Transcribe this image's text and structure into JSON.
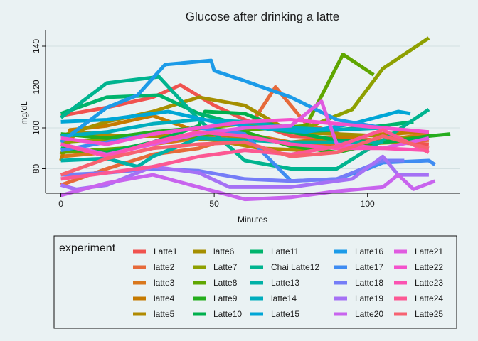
{
  "chart_data": {
    "type": "line",
    "title": "Glucose after drinking a latte",
    "xlabel": "Minutes",
    "ylabel": "mg/dL",
    "xlim": [
      -5,
      130
    ],
    "ylim": [
      68,
      148
    ],
    "xticks": [
      0,
      50,
      100
    ],
    "yticks": [
      80,
      100,
      120,
      140
    ],
    "grid": "horizontal",
    "legend_title": "experiment",
    "legend_position": "bottom",
    "series": [
      {
        "name": "Latte1",
        "color": "#f0534f",
        "points": [
          [
            0,
            106
          ],
          [
            15,
            110
          ],
          [
            30,
            115
          ],
          [
            39,
            121
          ],
          [
            50,
            111
          ],
          [
            60,
            104
          ],
          [
            75,
            96
          ],
          [
            90,
            95
          ],
          [
            105,
            93
          ],
          [
            120,
            92
          ]
        ]
      },
      {
        "name": "latte2",
        "color": "#e66a3a",
        "points": [
          [
            0,
            72
          ],
          [
            15,
            80
          ],
          [
            30,
            87
          ],
          [
            45,
            90
          ],
          [
            60,
            97
          ],
          [
            70,
            120
          ],
          [
            80,
            102
          ],
          [
            95,
            95
          ],
          [
            110,
            93
          ],
          [
            120,
            94
          ]
        ]
      },
      {
        "name": "latte3",
        "color": "#d9771c",
        "points": [
          [
            0,
            86
          ],
          [
            15,
            88
          ],
          [
            30,
            92
          ],
          [
            45,
            95
          ],
          [
            60,
            97
          ],
          [
            75,
            93
          ],
          [
            90,
            91
          ],
          [
            105,
            94
          ],
          [
            120,
            97
          ]
        ]
      },
      {
        "name": "latte4",
        "color": "#c57a00",
        "points": [
          [
            0,
            84
          ],
          [
            3,
            99
          ],
          [
            15,
            101
          ],
          [
            30,
            106
          ],
          [
            45,
            98
          ],
          [
            60,
            95
          ],
          [
            75,
            93
          ],
          [
            90,
            95
          ],
          [
            105,
            97
          ],
          [
            120,
            98
          ]
        ]
      },
      {
        "name": "latte5",
        "color": "#b08a00",
        "points": [
          [
            0,
            87
          ],
          [
            5,
            98
          ],
          [
            20,
            96
          ],
          [
            35,
            96
          ],
          [
            50,
            94
          ],
          [
            65,
            90
          ],
          [
            80,
            89
          ],
          [
            95,
            92
          ],
          [
            110,
            93
          ],
          [
            120,
            95
          ]
        ]
      },
      {
        "name": "latte6",
        "color": "#a58f00",
        "points": [
          [
            0,
            96
          ],
          [
            15,
            103
          ],
          [
            30,
            108
          ],
          [
            45,
            115
          ],
          [
            60,
            111
          ],
          [
            75,
            98
          ],
          [
            90,
            97
          ],
          [
            105,
            96
          ],
          [
            115,
            95
          ]
        ]
      },
      {
        "name": "Latte7",
        "color": "#8ea000",
        "points": [
          [
            0,
            93
          ],
          [
            20,
            95
          ],
          [
            40,
            99
          ],
          [
            60,
            102
          ],
          [
            80,
            100
          ],
          [
            95,
            109
          ],
          [
            105,
            129
          ],
          [
            120,
            144
          ]
        ]
      },
      {
        "name": "Latte8",
        "color": "#5fa600",
        "points": [
          [
            0,
            88
          ],
          [
            20,
            90
          ],
          [
            40,
            95
          ],
          [
            60,
            99
          ],
          [
            80,
            101
          ],
          [
            92,
            136
          ],
          [
            102,
            126
          ]
        ]
      },
      {
        "name": "Latte9",
        "color": "#24ad1d",
        "points": [
          [
            0,
            97
          ],
          [
            15,
            95
          ],
          [
            30,
            98
          ],
          [
            45,
            100
          ],
          [
            60,
            98
          ],
          [
            75,
            91
          ],
          [
            90,
            88
          ],
          [
            105,
            93
          ],
          [
            120,
            96
          ],
          [
            127,
            97
          ]
        ]
      },
      {
        "name": "Latte10",
        "color": "#00b04c",
        "points": [
          [
            0,
            90
          ],
          [
            15,
            88
          ],
          [
            30,
            93
          ],
          [
            45,
            101
          ],
          [
            47,
            108
          ],
          [
            60,
            107
          ],
          [
            75,
            98
          ],
          [
            90,
            94
          ],
          [
            105,
            93
          ],
          [
            120,
            95
          ]
        ]
      },
      {
        "name": "Latte11",
        "color": "#00b46c",
        "points": [
          [
            0,
            107
          ],
          [
            15,
            115
          ],
          [
            32,
            116
          ],
          [
            45,
            107
          ],
          [
            60,
            101
          ],
          [
            75,
            98
          ],
          [
            90,
            99
          ],
          [
            105,
            101
          ],
          [
            115,
            103
          ]
        ]
      },
      {
        "name": "Chai Latte12",
        "color": "#00b48f",
        "points": [
          [
            0,
            105
          ],
          [
            15,
            122
          ],
          [
            32,
            125
          ],
          [
            45,
            104
          ],
          [
            60,
            84
          ],
          [
            75,
            80
          ],
          [
            90,
            80
          ],
          [
            105,
            94
          ],
          [
            120,
            109
          ]
        ]
      },
      {
        "name": "Latte13",
        "color": "#00b1a6",
        "points": [
          [
            0,
            84
          ],
          [
            15,
            85
          ],
          [
            25,
            81
          ],
          [
            30,
            86
          ],
          [
            45,
            95
          ],
          [
            60,
            94
          ],
          [
            75,
            93
          ],
          [
            90,
            93
          ],
          [
            105,
            93
          ]
        ]
      },
      {
        "name": "latte14",
        "color": "#00adbd",
        "points": [
          [
            0,
            96
          ],
          [
            15,
            98
          ],
          [
            30,
            102
          ],
          [
            45,
            104
          ],
          [
            60,
            103
          ],
          [
            75,
            100
          ],
          [
            90,
            99
          ],
          [
            105,
            100
          ]
        ]
      },
      {
        "name": "Latte15",
        "color": "#00a6d6",
        "points": [
          [
            0,
            103
          ],
          [
            15,
            104
          ],
          [
            35,
            108
          ],
          [
            50,
            103
          ],
          [
            65,
            100
          ],
          [
            80,
            98
          ],
          [
            95,
            102
          ],
          [
            110,
            108
          ],
          [
            114,
            107
          ]
        ]
      },
      {
        "name": "Latte16",
        "color": "#1c9be8",
        "points": [
          [
            0,
            93
          ],
          [
            15,
            110
          ],
          [
            25,
            116
          ],
          [
            34,
            131
          ],
          [
            49,
            133
          ],
          [
            50,
            128
          ],
          [
            60,
            123
          ],
          [
            75,
            115
          ],
          [
            90,
            104
          ],
          [
            105,
            100
          ]
        ]
      },
      {
        "name": "Latte17",
        "color": "#3f8cf2",
        "points": [
          [
            0,
            89
          ],
          [
            15,
            93
          ],
          [
            30,
            97
          ],
          [
            45,
            100
          ],
          [
            60,
            97
          ],
          [
            75,
            74
          ],
          [
            90,
            75
          ],
          [
            100,
            80
          ],
          [
            105,
            83
          ],
          [
            120,
            84
          ],
          [
            122,
            82
          ]
        ]
      },
      {
        "name": "Latte18",
        "color": "#757df7",
        "points": [
          [
            0,
            77
          ],
          [
            15,
            78
          ],
          [
            30,
            80
          ],
          [
            45,
            79
          ],
          [
            60,
            75
          ],
          [
            75,
            74
          ],
          [
            90,
            75
          ],
          [
            105,
            84
          ],
          [
            112,
            84
          ]
        ]
      },
      {
        "name": "Latte19",
        "color": "#a571f5",
        "points": [
          [
            0,
            72
          ],
          [
            5,
            70
          ],
          [
            15,
            72
          ],
          [
            30,
            81
          ],
          [
            45,
            78
          ],
          [
            55,
            71
          ],
          [
            75,
            71
          ],
          [
            95,
            75
          ],
          [
            105,
            86
          ],
          [
            110,
            77
          ],
          [
            120,
            77
          ]
        ]
      },
      {
        "name": "Latte20",
        "color": "#c864ee",
        "points": [
          [
            0,
            67
          ],
          [
            15,
            73
          ],
          [
            30,
            77
          ],
          [
            45,
            71
          ],
          [
            60,
            65
          ],
          [
            75,
            66
          ],
          [
            90,
            69
          ],
          [
            105,
            71
          ],
          [
            110,
            77
          ],
          [
            115,
            70
          ],
          [
            122,
            74
          ]
        ]
      },
      {
        "name": "Latte21",
        "color": "#e05be0",
        "points": [
          [
            0,
            92
          ],
          [
            15,
            87
          ],
          [
            30,
            92
          ],
          [
            45,
            97
          ],
          [
            60,
            100
          ],
          [
            75,
            101
          ],
          [
            85,
            113
          ],
          [
            90,
            92
          ],
          [
            105,
            90
          ],
          [
            120,
            95
          ]
        ]
      },
      {
        "name": "Latte22",
        "color": "#f452cc",
        "points": [
          [
            0,
            95
          ],
          [
            15,
            92
          ],
          [
            30,
            97
          ],
          [
            45,
            100
          ],
          [
            60,
            103
          ],
          [
            75,
            104
          ],
          [
            90,
            102
          ],
          [
            105,
            100
          ],
          [
            120,
            98
          ]
        ]
      },
      {
        "name": "Latte23",
        "color": "#fb52b1",
        "points": [
          [
            0,
            92
          ],
          [
            15,
            86
          ],
          [
            30,
            93
          ],
          [
            45,
            98
          ],
          [
            60,
            96
          ],
          [
            75,
            92
          ],
          [
            90,
            90
          ],
          [
            105,
            90
          ],
          [
            120,
            89
          ]
        ]
      },
      {
        "name": "Latte24",
        "color": "#fc5893",
        "points": [
          [
            0,
            75
          ],
          [
            15,
            78
          ],
          [
            30,
            81
          ],
          [
            45,
            86
          ],
          [
            60,
            89
          ],
          [
            75,
            87
          ],
          [
            90,
            91
          ],
          [
            105,
            99
          ],
          [
            120,
            88
          ]
        ]
      },
      {
        "name": "Latte25",
        "color": "#f76271",
        "points": [
          [
            0,
            77
          ],
          [
            15,
            85
          ],
          [
            30,
            90
          ],
          [
            45,
            92
          ],
          [
            60,
            93
          ],
          [
            75,
            86
          ],
          [
            90,
            88
          ],
          [
            105,
            96
          ],
          [
            120,
            90
          ]
        ]
      }
    ]
  }
}
